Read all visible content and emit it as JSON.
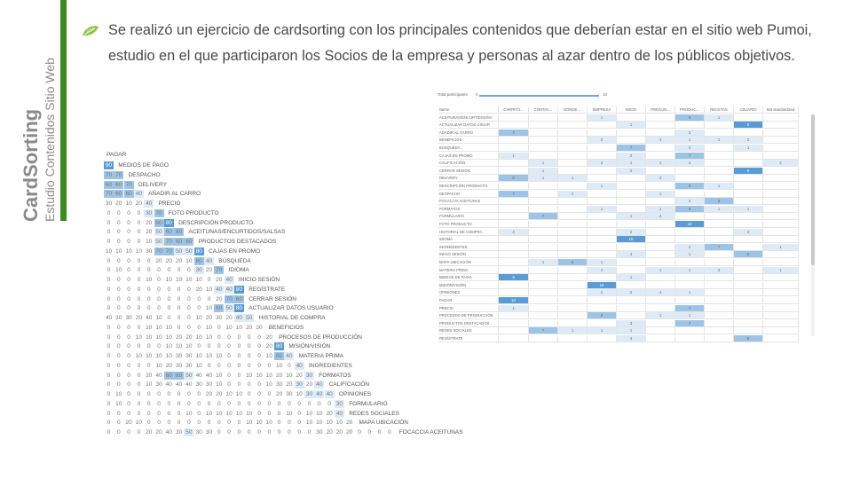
{
  "sidebar": {
    "title": "CardSorting",
    "subtitle": "Estudio Contenidos Sitio Web"
  },
  "bullet": {
    "icon": "leaf-icon",
    "text": "Se realizó un ejercicio de cardsorting con los principales contenidos que deberían estar en el sitio web Pumoi, estudio en el que participaron los Socios de la empresa y personas al azar dentro de los públicos objetivos."
  },
  "colors": {
    "accent_bar": "#3f8a1f",
    "leaf": "#8cc63f",
    "cell_dark": "#5b9bd5",
    "cell_mid": "#9dc3e6",
    "cell_light": "#deebf7"
  },
  "matrix": {
    "first_label": "PAGAR",
    "labels": [
      "MEDIOS DE PAGO",
      "DESPACHO",
      "DELIVERY",
      "AÑADIR AL CARRO",
      "PRECIO",
      "FOTO PRODUCTO",
      "DESCRIPCIÓN PRODUCTO",
      "ACEITUNAS/ENCURTIDOS/SALSAS",
      "PRODUCTOS DESTACADOS",
      "CAJAS EN PROMO",
      "BÚSQUEDA",
      "IDIOMA",
      "INICIO SESIÓN",
      "REGÍSTRATE",
      "CERRAR SESIÓN",
      "ACTUALIZAR DATOS USUARIO",
      "HISTORIAL DE COMPRA",
      "BENEFICIOS",
      "PROCESOS DE PRODUCCIÓN",
      "MISIÓN/VISIÓN",
      "MATERIA PRIMA",
      "INGREDIENTES",
      "FORMATOS",
      "CALIFICACIÓN",
      "OPINIONES",
      "FORMULARIO",
      "REDES SOCIALES",
      "MAPA UBICACIÓN",
      "FOCACCIA ACEITUNAS"
    ],
    "rows": [
      [
        90
      ],
      [
        70,
        70
      ],
      [
        60,
        60,
        70
      ],
      [
        70,
        60,
        60,
        40
      ],
      [
        30,
        20,
        10,
        20,
        40
      ],
      [
        0,
        0,
        0,
        0,
        30,
        70
      ],
      [
        0,
        0,
        0,
        0,
        20,
        60,
        80
      ],
      [
        0,
        0,
        0,
        0,
        20,
        50,
        60,
        60
      ],
      [
        0,
        0,
        0,
        0,
        10,
        50,
        70,
        60,
        60
      ],
      [
        10,
        10,
        10,
        10,
        30,
        70,
        70,
        50,
        50,
        80
      ],
      [
        0,
        0,
        0,
        0,
        0,
        20,
        20,
        20,
        10,
        60,
        40
      ],
      [
        0,
        10,
        0,
        0,
        0,
        0,
        0,
        0,
        0,
        30,
        20,
        70
      ],
      [
        0,
        0,
        0,
        0,
        10,
        0,
        10,
        10,
        10,
        10,
        0,
        20,
        40
      ],
      [
        0,
        0,
        0,
        0,
        0,
        0,
        0,
        0,
        0,
        20,
        10,
        40,
        40,
        90
      ],
      [
        0,
        0,
        0,
        0,
        0,
        0,
        0,
        0,
        0,
        0,
        0,
        20,
        70,
        60
      ],
      [
        0,
        0,
        0,
        0,
        0,
        0,
        0,
        0,
        0,
        0,
        10,
        60,
        50,
        80
      ],
      [
        40,
        30,
        30,
        20,
        40,
        10,
        0,
        0,
        0,
        10,
        20,
        30,
        20,
        40,
        50
      ],
      [
        0,
        0,
        0,
        0,
        10,
        10,
        10,
        0,
        0,
        0,
        10,
        0,
        10,
        10,
        20,
        20
      ],
      [
        0,
        0,
        0,
        10,
        10,
        10,
        10,
        20,
        20,
        10,
        10,
        0,
        0,
        0,
        0,
        0,
        20
      ],
      [
        0,
        0,
        0,
        0,
        0,
        0,
        10,
        10,
        10,
        0,
        0,
        0,
        0,
        0,
        0,
        0,
        20,
        80
      ],
      [
        0,
        0,
        0,
        10,
        10,
        10,
        10,
        30,
        30,
        10,
        10,
        10,
        0,
        0,
        0,
        0,
        10,
        60,
        40
      ],
      [
        0,
        0,
        0,
        0,
        0,
        10,
        20,
        30,
        30,
        10,
        0,
        0,
        0,
        0,
        0,
        0,
        0,
        10,
        0,
        40
      ],
      [
        0,
        0,
        0,
        0,
        20,
        40,
        60,
        60,
        50,
        40,
        40,
        10,
        0,
        0,
        10,
        10,
        10,
        20,
        10,
        20,
        30
      ],
      [
        0,
        0,
        0,
        0,
        10,
        30,
        40,
        40,
        40,
        30,
        30,
        10,
        0,
        0,
        0,
        0,
        10,
        30,
        20,
        30,
        20,
        40
      ],
      [
        0,
        10,
        0,
        0,
        0,
        0,
        0,
        0,
        0,
        0,
        20,
        20,
        10,
        10,
        0,
        0,
        0,
        20,
        30,
        10,
        30,
        40,
        40
      ],
      [
        0,
        10,
        0,
        0,
        0,
        0,
        0,
        0,
        0,
        0,
        0,
        0,
        0,
        0,
        0,
        0,
        0,
        0,
        0,
        0,
        0,
        0,
        0,
        30
      ],
      [
        0,
        0,
        0,
        0,
        0,
        0,
        0,
        0,
        10,
        0,
        10,
        10,
        10,
        10,
        10,
        0,
        0,
        0,
        10,
        0,
        10,
        10,
        20,
        40
      ],
      [
        0,
        0,
        20,
        10,
        0,
        0,
        0,
        0,
        0,
        0,
        0,
        0,
        0,
        0,
        10,
        10,
        10,
        0,
        0,
        0,
        10,
        10,
        10,
        10,
        20
      ],
      [
        0,
        0,
        0,
        0,
        20,
        20,
        40,
        30,
        50,
        30,
        30,
        0,
        0,
        0,
        0,
        0,
        0,
        0,
        0,
        0,
        0,
        30,
        20,
        20,
        20,
        0,
        0,
        0,
        0
      ]
    ]
  },
  "sheet": {
    "total_label": "Total participants",
    "total_min": "0",
    "total_max": "10",
    "columns": [
      "Name",
      "CARRITO...",
      "CONTAC...",
      "DÓNDE ...",
      "EMPRESA",
      "INICIO",
      "PREGUN...",
      "PRODUC...",
      "RECETAS",
      "USUARIO",
      "Not standardized"
    ],
    "rows": [
      [
        "ACEITUNAS/ENCURTIDOS/SA",
        "",
        "",
        "",
        "1",
        "",
        "",
        "8",
        "1",
        "",
        ""
      ],
      [
        "ACTUALIZAR DATOS USUAR",
        "",
        "",
        "",
        "",
        "1",
        "",
        "",
        "",
        "9",
        ""
      ],
      [
        "AÑADIR AL CARRO",
        "7",
        "",
        "",
        "",
        "",
        "",
        "3",
        "",
        "",
        ""
      ],
      [
        "BENEFICIOS",
        "",
        "",
        "",
        "2",
        "",
        "4",
        "1",
        "1",
        "2",
        ""
      ],
      [
        "BÚSQUEDA",
        "",
        "",
        "",
        "",
        "7",
        "",
        "2",
        "",
        "1",
        ""
      ],
      [
        "CAJAS EN PROMO",
        "1",
        "",
        "",
        "",
        "2",
        "",
        "7",
        "",
        "",
        ""
      ],
      [
        "CALIFICACIÓN",
        "",
        "1",
        "",
        "2",
        "1",
        "1",
        "4",
        "",
        "",
        "2"
      ],
      [
        "CERRAR SESIÓN",
        "",
        "1",
        "",
        "",
        "2",
        "",
        "",
        "",
        "9",
        ""
      ],
      [
        "DELIVERY",
        "6",
        "1",
        "1",
        "",
        "",
        "3",
        "",
        "",
        "",
        ""
      ],
      [
        "DESCRIPCIÓN PRODUCTO",
        "",
        "",
        "",
        "1",
        "",
        "",
        "8",
        "1",
        "",
        ""
      ],
      [
        "DESPACHO",
        "7",
        "",
        "2",
        "",
        "",
        "1",
        "",
        "",
        "",
        ""
      ],
      [
        "FOCACCIA ACEITUNAS",
        "",
        "",
        "",
        "",
        "",
        "",
        "4",
        "6",
        "",
        ""
      ],
      [
        "FORMATOS",
        "",
        "",
        "",
        "1",
        "",
        "1",
        "8",
        "1",
        "1",
        ""
      ],
      [
        "FORMULARIO",
        "",
        "7",
        "",
        "",
        "1",
        "2",
        "",
        "",
        "",
        ""
      ],
      [
        "FOTO PRODUCTO",
        "",
        "",
        "",
        "",
        "",
        "",
        "10",
        "",
        "",
        ""
      ],
      [
        "HISTORIAL DE COMPRA",
        "4",
        "",
        "",
        "",
        "2",
        "",
        "",
        "",
        "4",
        ""
      ],
      [
        "IDIOMA",
        "",
        "",
        "",
        "",
        "10",
        "",
        "",
        "",
        "",
        ""
      ],
      [
        "INGREDIENTES",
        "",
        "",
        "",
        "",
        "",
        "",
        "2",
        "7",
        "",
        "1"
      ],
      [
        "INICIO SESIÓN",
        "",
        "",
        "",
        "",
        "4",
        "",
        "1",
        "",
        "5",
        ""
      ],
      [
        "MAPA UBICACIÓN",
        "",
        "1",
        "8",
        "1",
        "",
        "",
        "",
        "",
        "",
        ""
      ],
      [
        "MATERIA PRIMA",
        "",
        "",
        "",
        "4",
        "",
        "1",
        "1",
        "3",
        "",
        "1"
      ],
      [
        "MEDIOS DE PAGO",
        "9",
        "",
        "",
        "",
        "1",
        "",
        "",
        "",
        "",
        ""
      ],
      [
        "MISIÓN/VISIÓN",
        "",
        "",
        "",
        "10",
        "",
        "",
        "",
        "",
        "",
        ""
      ],
      [
        "OPINIONES",
        "",
        "",
        "",
        "2",
        "2",
        "4",
        "1",
        "",
        "",
        ""
      ],
      [
        "PAGAR",
        "10",
        "",
        "",
        "",
        "",
        "",
        "",
        "",
        "",
        ""
      ],
      [
        "PRECIO",
        "1",
        "",
        "",
        "",
        "",
        "",
        "7",
        "",
        "",
        ""
      ],
      [
        "PROCESOS DE PRODUCCIÓN",
        "",
        "",
        "",
        "8",
        "",
        "1",
        "1",
        "",
        "",
        ""
      ],
      [
        "PRODUCTOS DESTACADOS",
        "",
        "",
        "",
        "",
        "3",
        "",
        "7",
        "",
        "",
        ""
      ],
      [
        "REDES SOCIALES",
        "",
        "7",
        "1",
        "1",
        "1",
        "",
        "",
        "",
        "",
        ""
      ],
      [
        "REGÍSTRATE",
        "",
        "",
        "",
        "",
        "4",
        "",
        "",
        "",
        "5",
        ""
      ]
    ]
  }
}
